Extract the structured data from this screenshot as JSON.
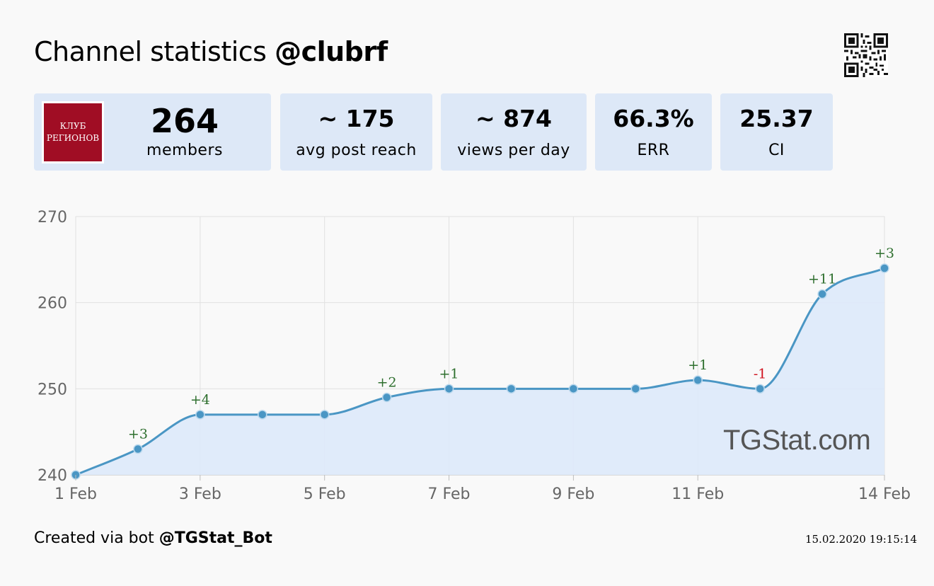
{
  "header": {
    "title_prefix": "Channel statistics",
    "title_handle": "@clubrf"
  },
  "qr_icon": "qr-code-icon",
  "channel_logo": {
    "line1": "КЛУБ",
    "line2": "РЕГИОНОВ",
    "color": "#a00d24"
  },
  "stats": [
    {
      "value": "264",
      "label": "members"
    },
    {
      "value": "~ 175",
      "label": "avg post reach"
    },
    {
      "value": "~ 874",
      "label": "views per day"
    },
    {
      "value": "66.3%",
      "label": "ERR"
    },
    {
      "value": "25.37",
      "label": "CI"
    }
  ],
  "chart_data": {
    "type": "area",
    "x": [
      1,
      2,
      3,
      4,
      5,
      6,
      7,
      8,
      9,
      10,
      11,
      12,
      13,
      14
    ],
    "values": [
      240,
      243,
      247,
      247,
      247,
      249,
      250,
      250,
      250,
      250,
      251,
      250,
      261,
      264
    ],
    "deltas": [
      "",
      "+3",
      "+4",
      "",
      "",
      "+2",
      "+1",
      "",
      "",
      "",
      "+1",
      "-1",
      "+11",
      "+3"
    ],
    "xticks": [
      {
        "x": 1,
        "label": "1 Feb"
      },
      {
        "x": 3,
        "label": "3 Feb"
      },
      {
        "x": 5,
        "label": "5 Feb"
      },
      {
        "x": 7,
        "label": "7 Feb"
      },
      {
        "x": 9,
        "label": "9 Feb"
      },
      {
        "x": 11,
        "label": "11 Feb"
      },
      {
        "x": 14,
        "label": "14 Feb"
      }
    ],
    "yticks": [
      240,
      250,
      260,
      270
    ],
    "ylim": [
      240,
      270
    ],
    "xlim": [
      1,
      14
    ],
    "grid": true,
    "line_color": "#4a96c4",
    "fill_color": "#dde9f9",
    "positive_color": "#2e6f2e",
    "negative_color": "#d0121e"
  },
  "watermark": "TGStat.com",
  "footer": {
    "prefix": "Created via bot",
    "bot": "@TGStat_Bot",
    "timestamp": "15.02.2020 19:15:14"
  }
}
